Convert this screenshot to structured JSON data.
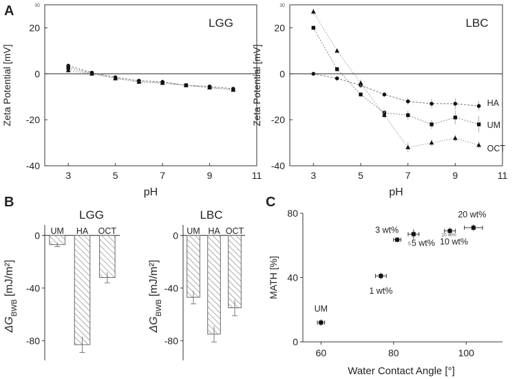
{
  "figure": {
    "panel_labels": [
      "A",
      "B",
      "C"
    ]
  },
  "chart_data": [
    {
      "id": "lgg_zeta",
      "type": "line",
      "title": "LGG",
      "xlabel": "pH",
      "ylabel": "Zeta Potential [mV]",
      "xlim": [
        2,
        11
      ],
      "ylim": [
        -40,
        30
      ],
      "xticks": [
        3,
        5,
        7,
        9,
        11
      ],
      "yticks": [
        -40,
        -20,
        0,
        20
      ],
      "ytick_extra_label": "30",
      "x": [
        3,
        4,
        5,
        6,
        7,
        8,
        9,
        10
      ],
      "series": [
        {
          "name": "HA",
          "marker": "circle",
          "values": [
            3.5,
            0.5,
            -1.5,
            -3,
            -3.5,
            -5,
            -5.5,
            -6.5
          ],
          "errors": [
            1.0,
            0.6,
            0.5,
            0.6,
            0.6,
            0.6,
            0.7,
            0.8
          ]
        },
        {
          "name": "UM",
          "marker": "square",
          "values": [
            2.5,
            0.2,
            -2,
            -3.5,
            -4,
            -5,
            -6,
            -7
          ],
          "errors": [
            1.0,
            0.6,
            0.5,
            0.6,
            0.6,
            0.6,
            0.7,
            0.8
          ]
        },
        {
          "name": "OCT",
          "marker": "triangle",
          "values": [
            1.5,
            0,
            -2,
            -3.5,
            -4,
            -5,
            -6,
            -7
          ],
          "errors": [
            1.0,
            0.6,
            0.5,
            0.6,
            0.6,
            0.6,
            0.7,
            0.8
          ]
        }
      ]
    },
    {
      "id": "lbc_zeta",
      "type": "line",
      "title": "LBC",
      "xlabel": "pH",
      "ylabel": "Zeta Potential [mV]",
      "xlim": [
        2,
        11
      ],
      "ylim": [
        -40,
        30
      ],
      "xticks": [
        3,
        5,
        7,
        9,
        11
      ],
      "yticks": [
        -40,
        -20,
        0,
        20
      ],
      "ytick_extra_label": "30",
      "x": [
        3,
        4,
        5,
        6,
        7,
        8,
        9,
        10
      ],
      "series": [
        {
          "name": "HA",
          "marker": "circle",
          "values": [
            0,
            -2,
            -5,
            -9,
            -12,
            -13,
            -13,
            -14
          ],
          "errors": [
            0.5,
            0.8,
            1.0,
            1.0,
            1.5,
            2.0,
            2.5,
            2.0
          ]
        },
        {
          "name": "UM",
          "marker": "square",
          "values": [
            20,
            2,
            -9,
            -17,
            -18,
            -22,
            -19,
            -22
          ],
          "errors": [
            1.0,
            1.0,
            1.0,
            1.5,
            2.0,
            2.0,
            3.0,
            3.5
          ]
        },
        {
          "name": "OCT",
          "marker": "triangle",
          "values": [
            27,
            10,
            -4,
            -18,
            -32,
            -30,
            -28,
            -31
          ],
          "errors": [
            1.5,
            1.0,
            1.5,
            1.5,
            2.0,
            1.5,
            1.5,
            1.5
          ]
        }
      ],
      "series_labels": [
        "HA",
        "UM",
        "OCT"
      ]
    },
    {
      "id": "lgg_dg",
      "type": "bar",
      "title": "LGG",
      "ylabel_main": "ΔG",
      "ylabel_sub": "BWB",
      "ylabel_unit": "[mJ/m²]",
      "categories": [
        "UM",
        "HA",
        "OCT"
      ],
      "values": [
        -7,
        -83,
        -32
      ],
      "errors": [
        1.5,
        6,
        4
      ],
      "ylim": [
        -95,
        8
      ],
      "yticks": [
        0,
        -40,
        -80
      ]
    },
    {
      "id": "lbc_dg",
      "type": "bar",
      "title": "LBC",
      "ylabel_main": "ΔG",
      "ylabel_sub": "BWB",
      "ylabel_unit": "[mJ/m²]",
      "categories": [
        "UM",
        "HA",
        "OCT"
      ],
      "values": [
        -47,
        -75,
        -55
      ],
      "errors": [
        5,
        6,
        6
      ],
      "ylim": [
        -95,
        8
      ],
      "yticks": [
        0,
        -40,
        -80
      ]
    },
    {
      "id": "math_wca",
      "type": "scatter",
      "title": "",
      "xlabel": "Water Contact Angle [°]",
      "ylabel": "MATH [%]",
      "xlim": [
        55,
        110
      ],
      "ylim": [
        0,
        80
      ],
      "xticks": [
        60,
        80,
        100
      ],
      "yticks": [
        0,
        40,
        80
      ],
      "points": [
        {
          "label": "UM",
          "x": 60,
          "y": 12,
          "xerr": 1.0,
          "yerr": 2
        },
        {
          "label": "1 wt%",
          "x": 76.5,
          "y": 41,
          "xerr": 1.5,
          "yerr": 2
        },
        {
          "label": "3 wt%",
          "x": 81,
          "y": 63.5,
          "xerr": 1.0,
          "yerr": 1.5
        },
        {
          "label": "5 wt%",
          "x": 85.5,
          "y": 67,
          "xerr": 1.5,
          "yerr": 3
        },
        {
          "label": "10 wt%",
          "x": 95.5,
          "y": 69,
          "xerr": 1.5,
          "yerr": 2
        },
        {
          "label": "20 wt%",
          "x": 102,
          "y": 71,
          "xerr": 2.5,
          "yerr": 2
        }
      ],
      "small_overlap_text": "10 wt%",
      "small_prefix_text": "5"
    }
  ]
}
